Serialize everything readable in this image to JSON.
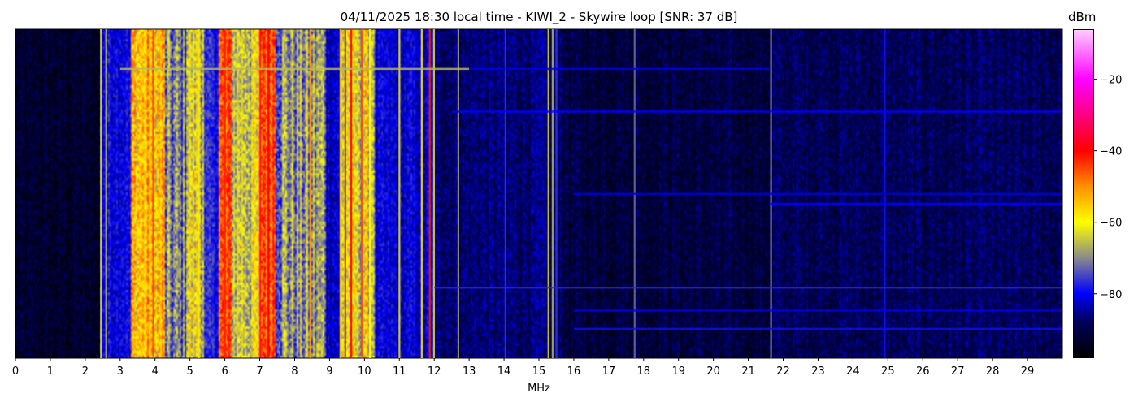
{
  "chart_data": {
    "type": "heatmap",
    "title": "04/11/2025 18:30 local time - KIWI_2 - Skywire loop [SNR: 37 dB]",
    "xlabel": "MHz",
    "ylabel": "",
    "xlim": [
      0,
      30
    ],
    "x_ticks": [
      "0",
      "1",
      "2",
      "3",
      "4",
      "5",
      "6",
      "7",
      "8",
      "9",
      "10",
      "11",
      "12",
      "13",
      "14",
      "15",
      "16",
      "17",
      "18",
      "19",
      "20",
      "21",
      "22",
      "23",
      "24",
      "25",
      "26",
      "27",
      "28",
      "29"
    ],
    "colorbar": {
      "label": "dBm",
      "range": [
        -98,
        -6
      ],
      "ticks": [
        -20,
        -40,
        -60,
        -80
      ],
      "tick_labels": [
        "−20",
        "−40",
        "−60",
        "−80"
      ],
      "colormap": [
        [
          -98,
          "#000000"
        ],
        [
          -88,
          "#00005a"
        ],
        [
          -80,
          "#0000ff"
        ],
        [
          -70,
          "#8a8a8a"
        ],
        [
          -60,
          "#ffff00"
        ],
        [
          -50,
          "#ff9000"
        ],
        [
          -40,
          "#ff0000"
        ],
        [
          -20,
          "#ff00ff"
        ],
        [
          -6,
          "#ffccff"
        ]
      ]
    },
    "noise_floor_bands": [
      {
        "from": 0,
        "to": 2.4,
        "dbm": -93
      },
      {
        "from": 2.4,
        "to": 3.3,
        "dbm": -80
      },
      {
        "from": 3.3,
        "to": 4.3,
        "dbm": -55
      },
      {
        "from": 4.3,
        "to": 4.9,
        "dbm": -72
      },
      {
        "from": 4.9,
        "to": 5.4,
        "dbm": -62
      },
      {
        "from": 5.4,
        "to": 5.8,
        "dbm": -78
      },
      {
        "from": 5.8,
        "to": 6.2,
        "dbm": -48
      },
      {
        "from": 6.2,
        "to": 7.0,
        "dbm": -63
      },
      {
        "from": 7.0,
        "to": 7.45,
        "dbm": -43
      },
      {
        "from": 7.45,
        "to": 8.9,
        "dbm": -69
      },
      {
        "from": 8.9,
        "to": 9.3,
        "dbm": -82
      },
      {
        "from": 9.3,
        "to": 10.3,
        "dbm": -62
      },
      {
        "from": 10.3,
        "to": 12.0,
        "dbm": -82
      },
      {
        "from": 12.0,
        "to": 15.7,
        "dbm": -87
      },
      {
        "from": 15.7,
        "to": 21.6,
        "dbm": -91
      },
      {
        "from": 21.6,
        "to": 30,
        "dbm": -89
      }
    ],
    "carriers": [
      {
        "mhz": 2.45,
        "dbm": -62
      },
      {
        "mhz": 2.6,
        "dbm": -64
      },
      {
        "mhz": 3.95,
        "dbm": -45
      },
      {
        "mhz": 5.25,
        "dbm": -58
      },
      {
        "mhz": 6.0,
        "dbm": -42
      },
      {
        "mhz": 7.25,
        "dbm": -40
      },
      {
        "mhz": 8.45,
        "dbm": -50
      },
      {
        "mhz": 9.31,
        "dbm": -55
      },
      {
        "mhz": 9.45,
        "dbm": -42
      },
      {
        "mhz": 9.62,
        "dbm": -40
      },
      {
        "mhz": 9.92,
        "dbm": -45
      },
      {
        "mhz": 10.15,
        "dbm": -60
      },
      {
        "mhz": 11.0,
        "dbm": -62
      },
      {
        "mhz": 11.64,
        "dbm": -58
      },
      {
        "mhz": 11.87,
        "dbm": -42
      },
      {
        "mhz": 11.99,
        "dbm": -62
      },
      {
        "mhz": 12.69,
        "dbm": -68
      },
      {
        "mhz": 14.04,
        "dbm": -76
      },
      {
        "mhz": 15.27,
        "dbm": -63
      },
      {
        "mhz": 15.39,
        "dbm": -66
      },
      {
        "mhz": 15.5,
        "dbm": -76
      },
      {
        "mhz": 17.74,
        "dbm": -72
      },
      {
        "mhz": 21.65,
        "dbm": -70
      },
      {
        "mhz": 24.91,
        "dbm": -79
      }
    ],
    "time_lines": [
      {
        "time_fraction": 0.12,
        "from": 3.0,
        "to": 13.0,
        "dbm": -66
      },
      {
        "time_fraction": 0.12,
        "from": 13.0,
        "to": 21.6,
        "dbm": -81
      },
      {
        "time_fraction": 0.25,
        "from": 12.5,
        "to": 30,
        "dbm": -80
      },
      {
        "time_fraction": 0.5,
        "from": 16.0,
        "to": 30,
        "dbm": -82
      },
      {
        "time_fraction": 0.53,
        "from": 21.6,
        "to": 30,
        "dbm": -80
      },
      {
        "time_fraction": 0.785,
        "from": 12.0,
        "to": 30,
        "dbm": -77
      },
      {
        "time_fraction": 0.855,
        "from": 16.0,
        "to": 30,
        "dbm": -81
      },
      {
        "time_fraction": 0.91,
        "from": 16.0,
        "to": 30,
        "dbm": -79
      }
    ]
  }
}
